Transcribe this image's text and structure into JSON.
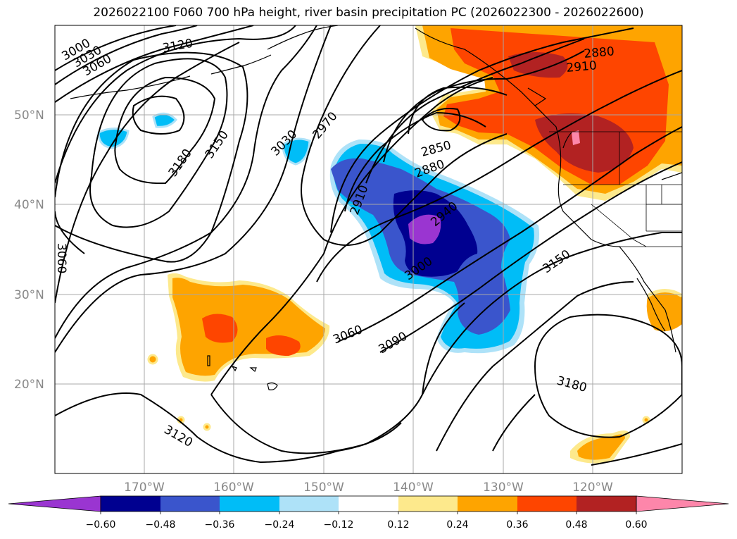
{
  "title": "2026022100 F060 700 hPa height, river basin precipitation PC (2026022300 - 2026022600)",
  "map": {
    "lat_labels": [
      "50°N",
      "40°N",
      "30°N",
      "20°N"
    ],
    "lon_labels": [
      "170°W",
      "160°W",
      "150°W",
      "140°W",
      "130°W",
      "120°W"
    ],
    "contour_labels": [
      "3000",
      "3030",
      "3060",
      "3120",
      "3150",
      "3180",
      "3030",
      "2970",
      "2850",
      "2880",
      "2910",
      "2940",
      "3000",
      "3060",
      "3090",
      "3150",
      "3180",
      "3120",
      "3060",
      "2880",
      "2910"
    ]
  },
  "colorbar": {
    "ticks": [
      "−0.60",
      "−0.48",
      "−0.36",
      "−0.24",
      "−0.12",
      "0.12",
      "0.24",
      "0.36",
      "0.48",
      "0.60"
    ],
    "colors": [
      "#9a35d1",
      "#000090",
      "#3a55cc",
      "#00bdf7",
      "#aee2f8",
      "#ffffff",
      "#fde98c",
      "#fea400",
      "#fe4500",
      "#b22222",
      "#fd86aa"
    ]
  }
}
